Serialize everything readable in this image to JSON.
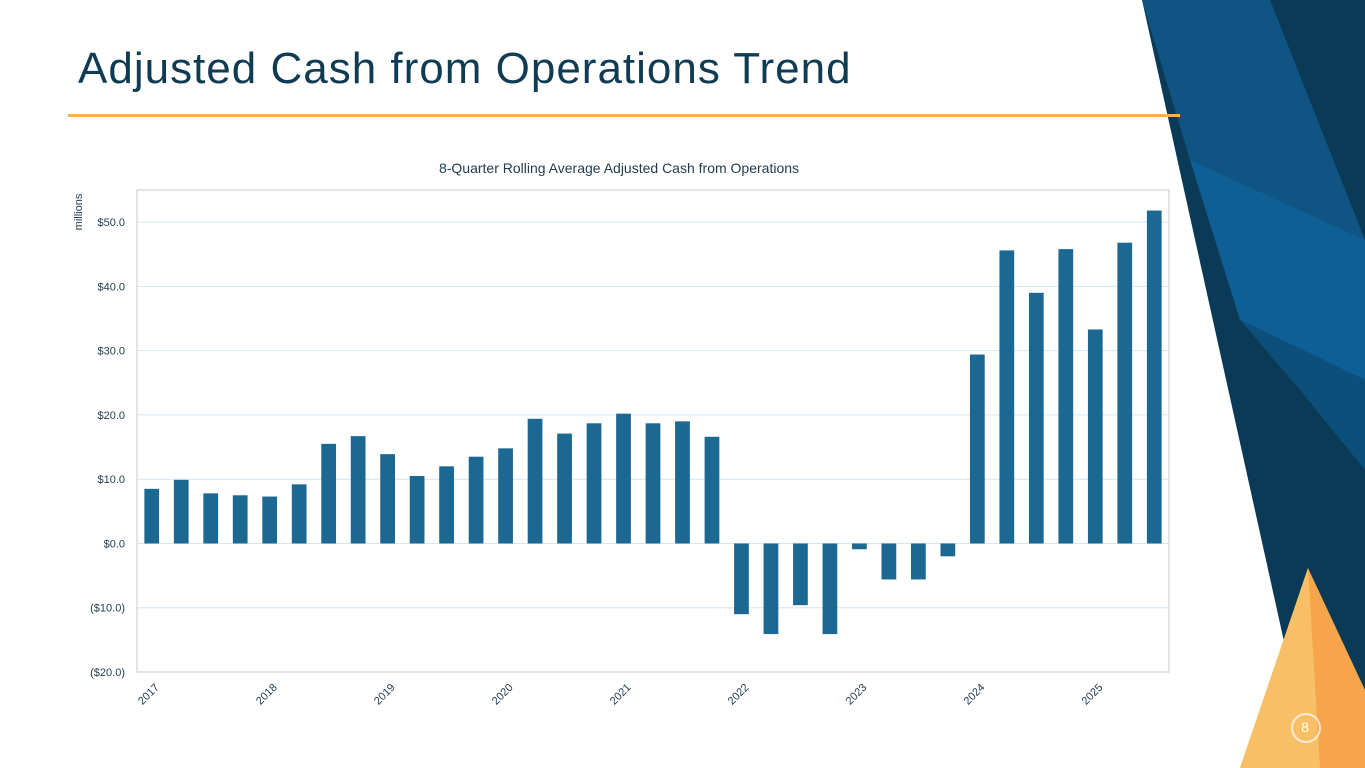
{
  "slide": {
    "title": "Adjusted Cash from Operations Trend",
    "page_number": "8",
    "colors": {
      "title": "#0f3b53",
      "rule": "#f2b24d",
      "bar": "#1b6892",
      "navy": "#0b3a56",
      "orange": "#f6a54a"
    }
  },
  "chart_data": {
    "type": "bar",
    "title": "8-Quarter Rolling Average Adjusted Cash from Operations",
    "ylabel": "millions",
    "xlabel": "",
    "ylim": [
      -20,
      55
    ],
    "yticks": [
      -20,
      -10,
      0,
      10,
      20,
      30,
      40,
      50
    ],
    "ytick_labels": [
      "($20.0)",
      "($10.0)",
      "$0.0",
      "$10.0",
      "$20.0",
      "$30.0",
      "$40.0",
      "$50.0"
    ],
    "grid": true,
    "x_tick_labels": [
      "2017",
      "2018",
      "2019",
      "2020",
      "2021",
      "2022",
      "2023",
      "2024",
      "2025"
    ],
    "x_tick_every": 4,
    "values": [
      8.5,
      9.9,
      7.8,
      7.5,
      7.3,
      9.2,
      15.5,
      16.7,
      13.9,
      10.5,
      12.0,
      13.5,
      14.8,
      19.4,
      17.1,
      18.7,
      20.2,
      18.7,
      19.0,
      16.6,
      -11.0,
      -14.1,
      -9.6,
      -14.1,
      -0.9,
      -5.6,
      -5.6,
      -2.0,
      29.4,
      45.6,
      39.0,
      45.8,
      33.3,
      46.8,
      51.8
    ]
  }
}
